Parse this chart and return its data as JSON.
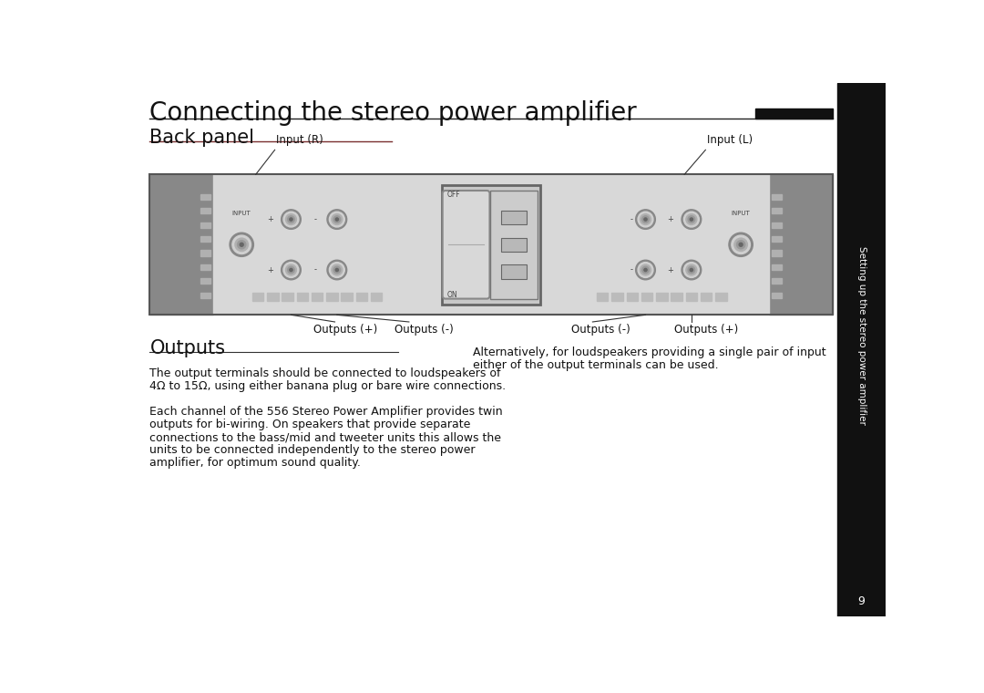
{
  "title": "Connecting the stereo power amplifier",
  "section1": "Back panel",
  "section2": "Outputs",
  "bg_color": "#ffffff",
  "sidebar_color": "#111111",
  "sidebar_text": "Setting up the stereo power amplifier",
  "sidebar_page": "9",
  "panel_dark_sides": "#909090",
  "panel_light_main": "#e2e2e2",
  "annotation_input_r": "Input (R)",
  "annotation_input_l": "Input (L)",
  "annotation_outputs_plus_left": "Outputs (+)",
  "annotation_outputs_minus_left": "Outputs (-)",
  "annotation_outputs_minus_right": "Outputs (-)",
  "annotation_outputs_plus_right": "Outputs (+)",
  "body_text1a": "The output terminals should be connected to loudspeakers of",
  "body_text1b": "4Ω to 15Ω, using either banana plug or bare wire connections.",
  "body_text2a": "Each channel of the 556 Stereo Power Amplifier provides twin",
  "body_text2b": "outputs for bi-wiring. On speakers that provide separate",
  "body_text2c": "connections to the bass/mid and tweeter units this allows the",
  "body_text2d": "units to be connected independently to the stereo power",
  "body_text2e": "amplifier, for optimum sound quality.",
  "body_text3a": "Alternatively, for loudspeakers providing a single pair of input",
  "body_text3b": "either of the output terminals can be used.",
  "title_font_size": 20,
  "section_font_size": 15,
  "body_font_size": 9.0,
  "annotation_font_size": 8.5
}
